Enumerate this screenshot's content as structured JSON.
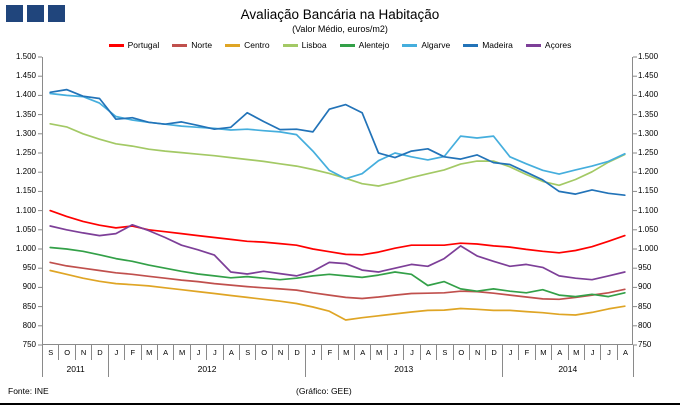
{
  "logo": {
    "square_color": "#20457C",
    "square_count": 3
  },
  "title": "Avaliação Bancária na Habitação",
  "subtitle": "(Valor Médio, euros/m2)",
  "footer": {
    "source": "Fonte: INE",
    "credit": "(Gráfico: GEE)"
  },
  "chart_data": {
    "type": "line",
    "title": "Avaliação Bancária na Habitação",
    "subtitle": "(Valor Médio, euros/m2)",
    "ylabel": "euros/m2",
    "ylim": [
      750,
      1500
    ],
    "ytick_step": 50,
    "grid": false,
    "legend_position": "top",
    "yticks": [
      {
        "value": 1500,
        "label": "1.500"
      },
      {
        "value": 1450,
        "label": "1.450"
      },
      {
        "value": 1400,
        "label": "1.400"
      },
      {
        "value": 1350,
        "label": "1.350"
      },
      {
        "value": 1300,
        "label": "1.300"
      },
      {
        "value": 1250,
        "label": "1.250"
      },
      {
        "value": 1200,
        "label": "1.200"
      },
      {
        "value": 1150,
        "label": "1.150"
      },
      {
        "value": 1100,
        "label": "1.100"
      },
      {
        "value": 1050,
        "label": "1.050"
      },
      {
        "value": 1000,
        "label": "1.000"
      },
      {
        "value": 950,
        "label": "950"
      },
      {
        "value": 900,
        "label": "900"
      },
      {
        "value": 850,
        "label": "850"
      },
      {
        "value": 800,
        "label": "800"
      },
      {
        "value": 750,
        "label": "750"
      }
    ],
    "x_months": [
      "S",
      "O",
      "N",
      "D",
      "J",
      "F",
      "M",
      "A",
      "M",
      "J",
      "J",
      "A",
      "S",
      "O",
      "N",
      "D",
      "J",
      "F",
      "M",
      "A",
      "M",
      "J",
      "J",
      "A",
      "S",
      "O",
      "N",
      "D",
      "J",
      "F",
      "M",
      "A",
      "M",
      "J",
      "J",
      "A"
    ],
    "year_groups": [
      {
        "label": "2011",
        "span": 4
      },
      {
        "label": "2012",
        "span": 12
      },
      {
        "label": "2013",
        "span": 12
      },
      {
        "label": "2014",
        "span": 8
      }
    ],
    "series": [
      {
        "name": "Portugal",
        "color": "#FF0000",
        "values": [
          1100,
          1085,
          1072,
          1062,
          1055,
          1060,
          1050,
          1045,
          1040,
          1035,
          1030,
          1025,
          1020,
          1018,
          1014,
          1010,
          1000,
          993,
          986,
          985,
          992,
          1002,
          1010,
          1010,
          1010,
          1015,
          1013,
          1008,
          1005,
          999,
          994,
          990,
          996,
          1006,
          1020,
          1035
        ]
      },
      {
        "name": "Norte",
        "color": "#C0504D",
        "values": [
          965,
          956,
          950,
          944,
          938,
          934,
          929,
          924,
          919,
          915,
          910,
          906,
          902,
          899,
          896,
          893,
          886,
          880,
          874,
          871,
          875,
          880,
          884,
          885,
          886,
          890,
          889,
          885,
          880,
          875,
          870,
          869,
          874,
          880,
          886,
          895
        ]
      },
      {
        "name": "Centro",
        "color": "#DFA525",
        "values": [
          944,
          934,
          924,
          916,
          910,
          907,
          904,
          899,
          894,
          889,
          884,
          879,
          874,
          869,
          864,
          858,
          849,
          838,
          815,
          821,
          826,
          831,
          836,
          840,
          841,
          845,
          843,
          840,
          840,
          837,
          834,
          830,
          828,
          835,
          844,
          851
        ]
      },
      {
        "name": "Lisboa",
        "color": "#A3C965",
        "values": [
          1326,
          1318,
          1300,
          1286,
          1274,
          1268,
          1260,
          1255,
          1251,
          1247,
          1243,
          1238,
          1233,
          1228,
          1222,
          1216,
          1207,
          1197,
          1184,
          1170,
          1164,
          1174,
          1186,
          1196,
          1206,
          1221,
          1229,
          1229,
          1214,
          1194,
          1176,
          1166,
          1181,
          1201,
          1226,
          1246
        ]
      },
      {
        "name": "Alentejo",
        "color": "#33A048",
        "values": [
          1004,
          1000,
          994,
          985,
          975,
          968,
          958,
          950,
          942,
          935,
          930,
          925,
          928,
          924,
          920,
          924,
          930,
          934,
          930,
          926,
          932,
          940,
          934,
          905,
          915,
          896,
          890,
          896,
          890,
          886,
          894,
          880,
          876,
          882,
          876,
          886
        ]
      },
      {
        "name": "Algarve",
        "color": "#45AEDD",
        "values": [
          1405,
          1400,
          1397,
          1380,
          1345,
          1336,
          1330,
          1325,
          1320,
          1317,
          1314,
          1310,
          1312,
          1308,
          1305,
          1298,
          1255,
          1205,
          1183,
          1196,
          1230,
          1250,
          1240,
          1232,
          1241,
          1294,
          1289,
          1294,
          1240,
          1222,
          1205,
          1195,
          1206,
          1216,
          1228,
          1248
        ]
      },
      {
        "name": "Madeira",
        "color": "#2273B8",
        "values": [
          1408,
          1415,
          1398,
          1392,
          1338,
          1342,
          1330,
          1325,
          1331,
          1322,
          1312,
          1317,
          1355,
          1332,
          1311,
          1312,
          1305,
          1364,
          1376,
          1355,
          1250,
          1238,
          1255,
          1261,
          1240,
          1234,
          1245,
          1225,
          1220,
          1200,
          1180,
          1150,
          1143,
          1154,
          1145,
          1140
        ]
      },
      {
        "name": "Açores",
        "color": "#7D3F98",
        "values": [
          1060,
          1050,
          1042,
          1035,
          1040,
          1063,
          1048,
          1030,
          1010,
          998,
          984,
          940,
          935,
          942,
          936,
          930,
          942,
          965,
          962,
          945,
          940,
          950,
          960,
          955,
          975,
          1008,
          982,
          968,
          955,
          960,
          952,
          930,
          924,
          920,
          930,
          940
        ]
      }
    ]
  }
}
